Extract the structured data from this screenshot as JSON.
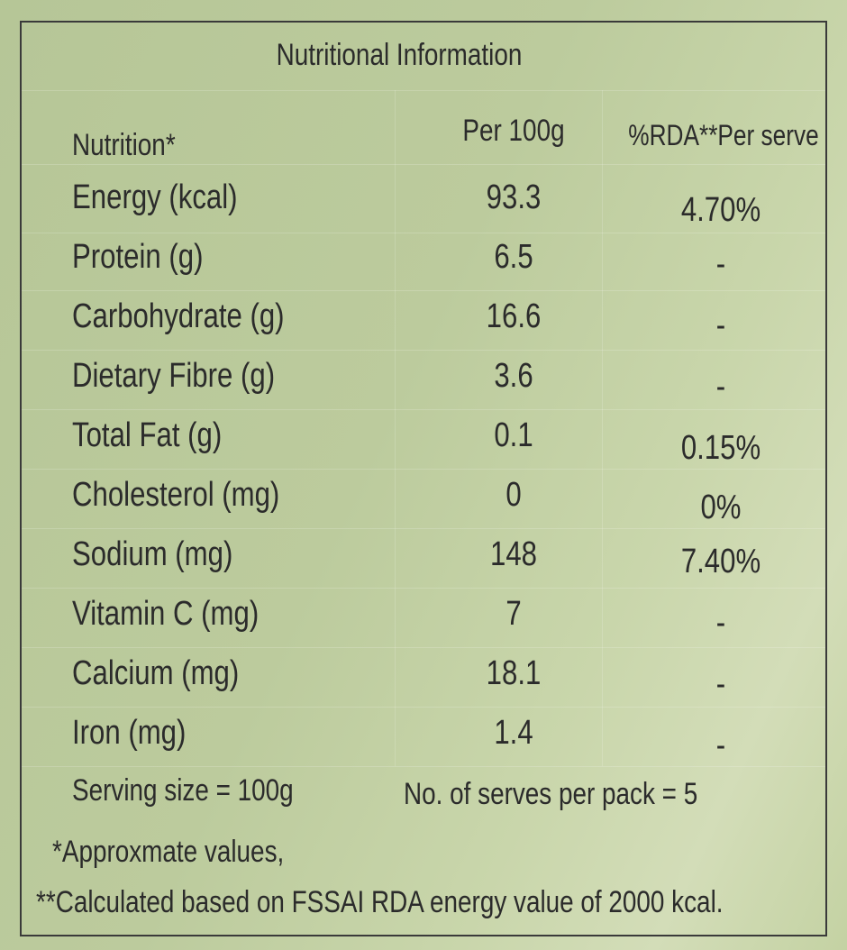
{
  "title": "Nutritional Information",
  "header": {
    "nutrition": "Nutrition*",
    "per100g": "Per 100g",
    "rda": "%RDA**Per serve"
  },
  "rows": [
    {
      "name": "Energy (kcal)",
      "per100g": "93.3",
      "rda": "4.70%"
    },
    {
      "name": "Protein (g)",
      "per100g": "6.5",
      "rda": "-"
    },
    {
      "name": "Carbohydrate (g)",
      "per100g": "16.6",
      "rda": "-"
    },
    {
      "name": "Dietary Fibre (g)",
      "per100g": "3.6",
      "rda": "-"
    },
    {
      "name": "Total Fat (g)",
      "per100g": "0.1",
      "rda": "0.15%"
    },
    {
      "name": "Cholesterol (mg)",
      "per100g": "0",
      "rda": "0%"
    },
    {
      "name": "Sodium (mg)",
      "per100g": "148",
      "rda": "7.40%"
    },
    {
      "name": "Vitamin C (mg)",
      "per100g": "7",
      "rda": "-"
    },
    {
      "name": "Calcium (mg)",
      "per100g": "18.1",
      "rda": "-"
    },
    {
      "name": "Iron (mg)",
      "per100g": "1.4",
      "rda": "-"
    }
  ],
  "serving_size": "Serving size = 100g",
  "serves_per_pack": "No. of serves per pack = 5",
  "footnote1": "*Approxmate values,",
  "footnote2": "**Calculated based on FSSAI RDA energy value of 2000 kcal."
}
